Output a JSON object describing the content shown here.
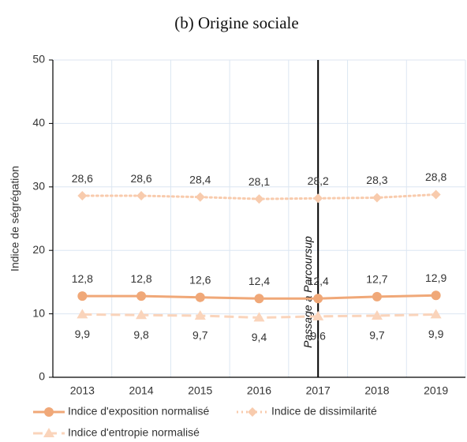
{
  "chart_data": {
    "type": "line",
    "title": "(b) Origine sociale",
    "ylabel": "Indice de ségrégation",
    "categories": [
      "2013",
      "2014",
      "2015",
      "2016",
      "2017",
      "2018",
      "2019"
    ],
    "series": [
      {
        "name": "Indice d'exposition normalisé",
        "color": "#f0a878",
        "marker": "circle",
        "linestyle": "solid",
        "label_position": "above",
        "values": [
          12.8,
          12.8,
          12.6,
          12.4,
          12.4,
          12.7,
          12.9
        ],
        "value_labels": [
          "12,8",
          "12,8",
          "12,6",
          "12,4",
          "12,4",
          "12,7",
          "12,9"
        ]
      },
      {
        "name": "Indice de dissimilarité",
        "color": "#f8cbad",
        "marker": "diamond",
        "linestyle": "dotted",
        "label_position": "above",
        "values": [
          28.6,
          28.6,
          28.4,
          28.1,
          28.2,
          28.3,
          28.8
        ],
        "value_labels": [
          "28,6",
          "28,6",
          "28,4",
          "28,1",
          "28,2",
          "28,3",
          "28,8"
        ]
      },
      {
        "name": "Indice d'entropie normalisé",
        "color": "#fad4bb",
        "marker": "triangle",
        "linestyle": "dashed",
        "label_position": "below",
        "values": [
          9.9,
          9.8,
          9.7,
          9.4,
          9.6,
          9.7,
          9.9
        ],
        "value_labels": [
          "9,9",
          "9,8",
          "9,7",
          "9,4",
          "9,6",
          "9,7",
          "9,9"
        ]
      }
    ],
    "annotation": "Passage à Parcoursup",
    "ylim": [
      0,
      50
    ],
    "yticks": [
      0,
      10,
      20,
      30,
      40,
      50
    ],
    "grid": true,
    "legend": "bottom"
  }
}
